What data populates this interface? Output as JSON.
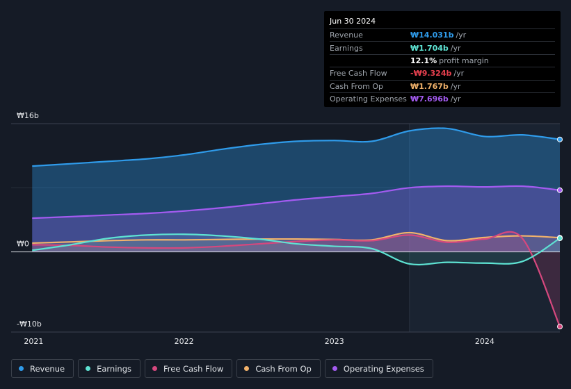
{
  "tooltip": {
    "date": "Jun 30 2024",
    "rows": [
      {
        "label": "Revenue",
        "value": "₩14.031b",
        "unit": "/yr",
        "color": "#2f9bea"
      },
      {
        "label": "Earnings",
        "value": "₩1.704b",
        "unit": "/yr",
        "color": "#5ee3d3"
      },
      {
        "label": "",
        "value": "12.1%",
        "unit": "profit margin",
        "color": "#ffffff"
      },
      {
        "label": "Free Cash Flow",
        "value": "-₩9.324b",
        "unit": "/yr",
        "color": "#e8404f"
      },
      {
        "label": "Cash From Op",
        "value": "₩1.767b",
        "unit": "/yr",
        "color": "#f2b26b"
      },
      {
        "label": "Operating Expenses",
        "value": "₩7.696b",
        "unit": "/yr",
        "color": "#a35bf0"
      }
    ]
  },
  "legend": [
    {
      "label": "Revenue",
      "color": "#2f9bea"
    },
    {
      "label": "Earnings",
      "color": "#5ee3d3"
    },
    {
      "label": "Free Cash Flow",
      "color": "#d6487e"
    },
    {
      "label": "Cash From Op",
      "color": "#f2b26b"
    },
    {
      "label": "Operating Expenses",
      "color": "#a35bf0"
    }
  ],
  "chart_data": {
    "type": "area",
    "title": "",
    "unit": "KRW billions",
    "ylim": [
      -10,
      16
    ],
    "y_tick_labels": [
      "₩16b",
      "₩0",
      "-₩10b"
    ],
    "y_tick_values": [
      16,
      0,
      -10
    ],
    "x_tick_labels": [
      "2021",
      "2022",
      "2023",
      "2024"
    ],
    "x_tick_values": [
      2021.0,
      2022.0,
      2023.0,
      2024.0
    ],
    "x": [
      2020.99,
      2021.25,
      2021.5,
      2021.75,
      2022.0,
      2022.25,
      2022.5,
      2022.75,
      2023.0,
      2023.25,
      2023.5,
      2023.75,
      2024.0,
      2024.25,
      2024.5
    ],
    "forecast_start": 2023.5,
    "series": [
      {
        "name": "Revenue",
        "color": "#2f9bea",
        "values": [
          10.7,
          11.0,
          11.3,
          11.6,
          12.1,
          12.8,
          13.4,
          13.8,
          13.9,
          13.8,
          15.1,
          15.4,
          14.4,
          14.6,
          14.03
        ]
      },
      {
        "name": "Earnings",
        "color": "#5ee3d3",
        "values": [
          0.2,
          0.9,
          1.7,
          2.1,
          2.2,
          2.0,
          1.6,
          1.0,
          0.7,
          0.4,
          -1.5,
          -1.3,
          -1.4,
          -1.2,
          1.7
        ]
      },
      {
        "name": "Free Cash Flow",
        "color": "#d6487e",
        "values": [
          0.9,
          0.8,
          0.6,
          0.5,
          0.5,
          0.7,
          1.0,
          1.3,
          1.5,
          1.4,
          2.1,
          1.2,
          1.6,
          1.7,
          -9.32
        ]
      },
      {
        "name": "Cash From Op",
        "color": "#f2b26b",
        "values": [
          1.1,
          1.25,
          1.4,
          1.5,
          1.5,
          1.55,
          1.6,
          1.6,
          1.55,
          1.5,
          2.4,
          1.4,
          1.8,
          2.0,
          1.77
        ]
      },
      {
        "name": "Operating Expenses",
        "color": "#a35bf0",
        "values": [
          4.2,
          4.4,
          4.6,
          4.8,
          5.1,
          5.5,
          6.0,
          6.5,
          6.9,
          7.3,
          8.0,
          8.2,
          8.1,
          8.2,
          7.7
        ]
      }
    ]
  }
}
